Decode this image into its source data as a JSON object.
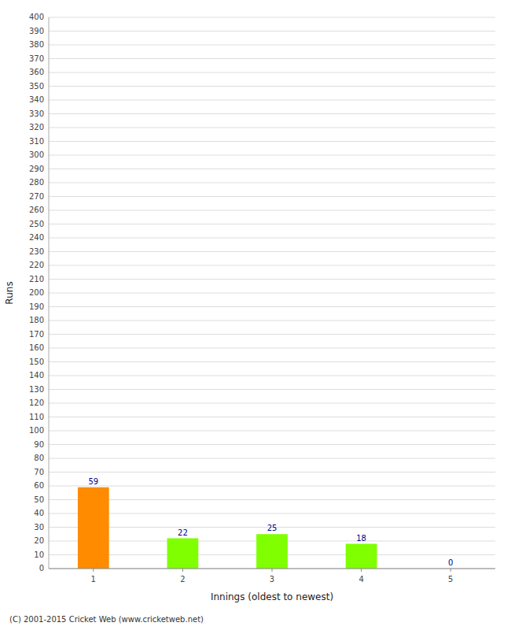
{
  "chart_data": {
    "type": "bar",
    "categories": [
      1,
      2,
      3,
      4,
      5
    ],
    "values": [
      59,
      22,
      25,
      18,
      0
    ],
    "colors": [
      "#ff8c00",
      "#7fff00",
      "#7fff00",
      "#7fff00",
      "#7fff00"
    ],
    "xlabel": "Innings (oldest to newest)",
    "ylabel": "Runs",
    "ylim": [
      0,
      400
    ],
    "yticks": [
      0,
      10,
      20,
      30,
      40,
      50,
      60,
      70,
      80,
      90,
      100,
      110,
      120,
      130,
      140,
      150,
      160,
      170,
      180,
      190,
      200,
      210,
      220,
      230,
      240,
      250,
      260,
      270,
      280,
      290,
      300,
      310,
      320,
      330,
      340,
      350,
      360,
      370,
      380,
      390,
      400
    ],
    "grid": true,
    "data_labels": true,
    "annotations": [
      "(C) 2001-2015 Cricket Web (www.cricketweb.net)"
    ]
  }
}
